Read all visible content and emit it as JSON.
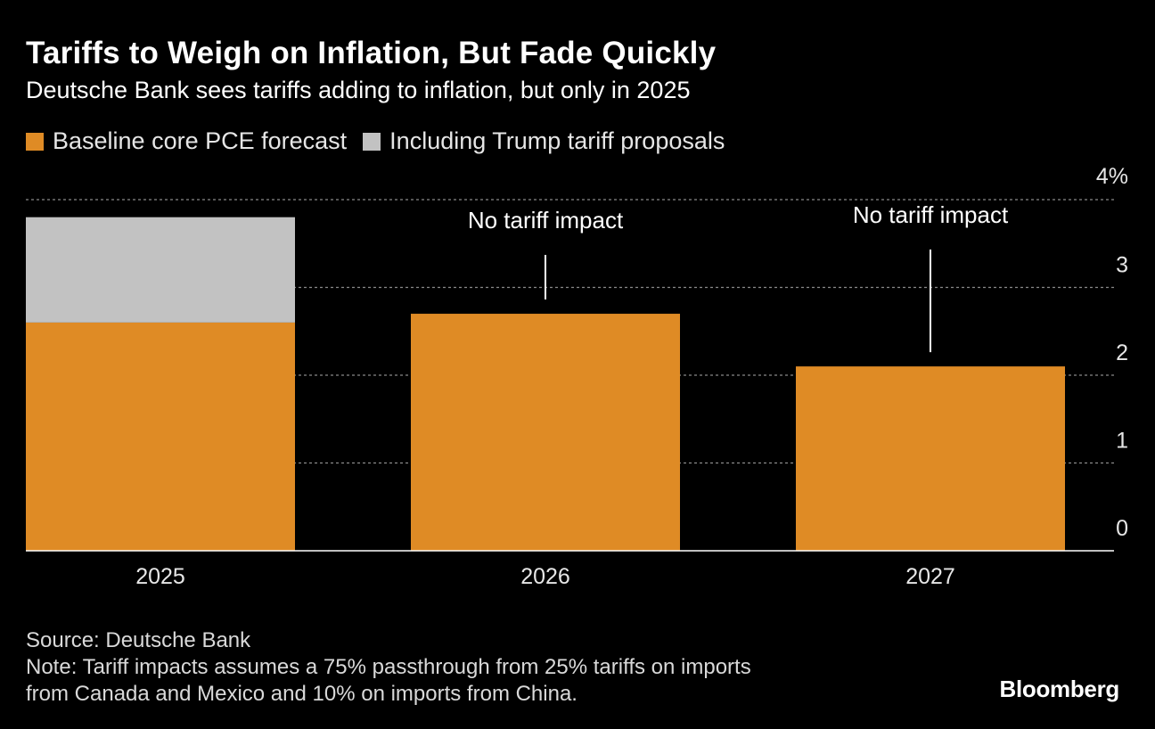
{
  "chart_data": {
    "type": "bar",
    "stacked": true,
    "title": "Tariffs to Weigh on Inflation, But Fade Quickly",
    "subtitle": "Deutsche Bank sees tariffs adding to inflation, but only in 2025",
    "categories": [
      "2025",
      "2026",
      "2027"
    ],
    "series": [
      {
        "name": "Baseline core PCE forecast",
        "color": "#df8b25",
        "values": [
          2.6,
          2.7,
          2.1
        ]
      },
      {
        "name": "Including Trump tariff proposals",
        "color": "#c2c2c2",
        "values": [
          1.2,
          0,
          0
        ]
      }
    ],
    "ylim": [
      0,
      4
    ],
    "yticks": [
      0,
      1,
      2,
      3,
      4
    ],
    "ytick_labels": [
      "0",
      "1",
      "2",
      "3",
      "4%"
    ],
    "grid": true,
    "legend_position": "top-left",
    "annotations": [
      {
        "category": "2026",
        "text": "No tariff impact"
      },
      {
        "category": "2027",
        "text": "No tariff impact"
      }
    ]
  },
  "footer": {
    "source": "Source: Deutsche Bank",
    "note_line1": "Note: Tariff impacts assumes a 75% passthrough from 25% tariffs on imports",
    "note_line2": "from Canada and Mexico and 10% on imports from China."
  },
  "brand": "Bloomberg"
}
